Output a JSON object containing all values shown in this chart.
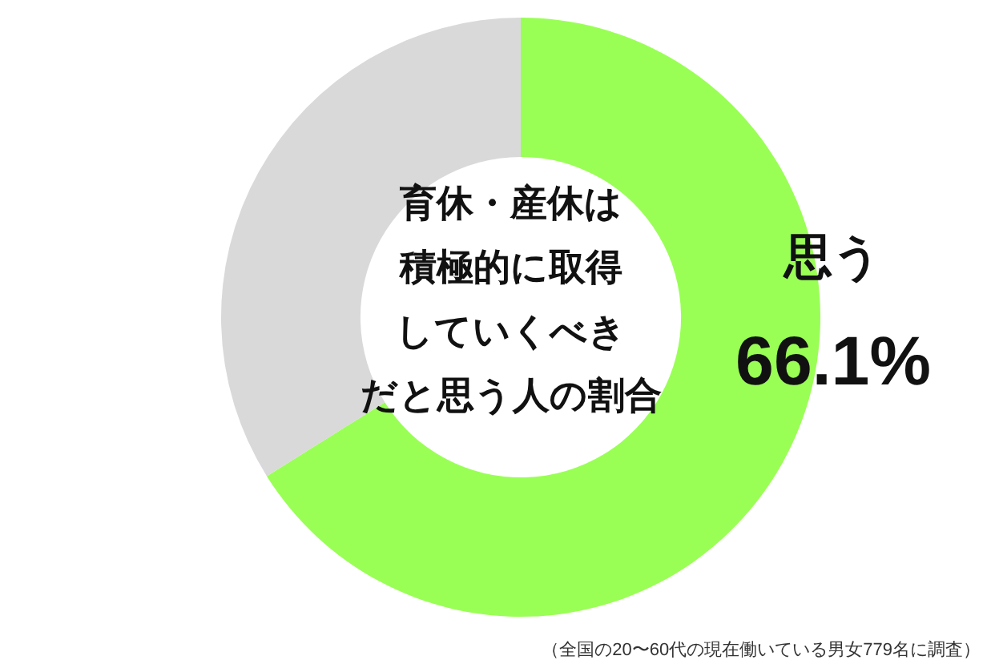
{
  "chart_data": {
    "type": "donut",
    "title": "育休・産休は積極的に取得していくべきだと思う人の割合",
    "categories": [
      "思う",
      null
    ],
    "values": [
      66.1,
      33.9
    ],
    "colors": [
      "#99ff55",
      "#d9d9d9"
    ],
    "value_labels": [
      "66.1%",
      null
    ],
    "legend": false,
    "annotations": [
      "（全国の20〜60代の現在働いている男女779名に調査）"
    ]
  }
}
